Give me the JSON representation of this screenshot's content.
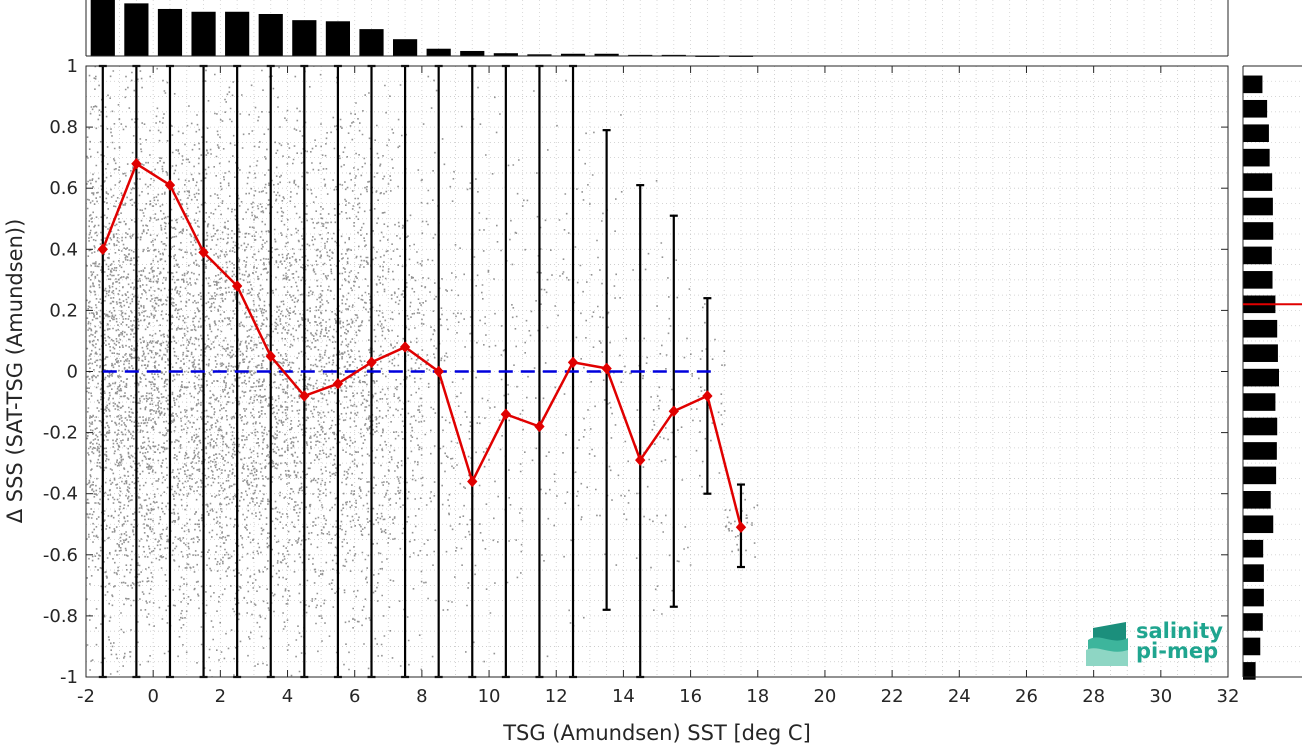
{
  "chart_data": {
    "type": "scatter",
    "xlabel": "TSG (Amundsen) SST [deg C]",
    "ylabel": "Δ SSS (SAT-TSG (Amundsen))",
    "xlim": [
      -2,
      32
    ],
    "ylim": [
      -1,
      1
    ],
    "xticks": [
      -2,
      0,
      2,
      4,
      6,
      8,
      10,
      12,
      14,
      16,
      18,
      20,
      22,
      24,
      26,
      28,
      30,
      32
    ],
    "yticks": [
      -1,
      -0.8,
      -0.6,
      -0.4,
      -0.2,
      0,
      0.2,
      0.4,
      0.6,
      0.8,
      1
    ],
    "grid": true,
    "reference_line": {
      "y": 0,
      "style": "dashed",
      "color": "#0000dd"
    },
    "scatter_color": "#808080",
    "bin_mean": {
      "color": "#e00000",
      "x": [
        -1.5,
        -0.5,
        0.5,
        1.5,
        2.5,
        3.5,
        4.5,
        5.5,
        6.5,
        7.5,
        8.5,
        9.5,
        10.5,
        11.5,
        12.5,
        13.5,
        14.5,
        15.5,
        16.5,
        17.5
      ],
      "y": [
        0.4,
        0.68,
        0.61,
        0.39,
        0.28,
        0.05,
        -0.08,
        -0.04,
        0.03,
        0.08,
        0.0,
        -0.36,
        -0.14,
        -0.18,
        0.03,
        0.01,
        -0.29,
        -0.13,
        -0.08,
        -0.51
      ]
    },
    "error_bars": {
      "color": "#000000",
      "x": [
        -1.5,
        -0.5,
        0.5,
        1.5,
        2.5,
        3.5,
        4.5,
        5.5,
        6.5,
        7.5,
        8.5,
        9.5,
        10.5,
        11.5,
        12.5,
        13.5,
        14.5,
        15.5,
        16.5,
        17.5
      ],
      "lower": [
        -1,
        -1,
        -1,
        -1,
        -1,
        -1,
        -1,
        -1,
        -1,
        -1,
        -1,
        -1,
        -1,
        -1,
        -1,
        -0.78,
        -1,
        -0.77,
        -0.4,
        -0.64
      ],
      "upper": [
        1,
        1,
        1,
        1,
        1,
        1,
        1,
        1,
        1,
        1,
        1,
        1,
        1,
        1,
        1,
        0.79,
        0.61,
        0.51,
        0.24,
        -0.37
      ]
    },
    "top_histogram": {
      "x": [
        -1.5,
        -0.5,
        0.5,
        1.5,
        2.5,
        3.5,
        4.5,
        5.5,
        6.5,
        7.5,
        8.5,
        9.5,
        10.5,
        11.5,
        12.5,
        13.5,
        14.5,
        15.5,
        16.5,
        17.5
      ],
      "relative_counts": [
        1.0,
        0.94,
        0.84,
        0.79,
        0.79,
        0.75,
        0.64,
        0.62,
        0.48,
        0.3,
        0.13,
        0.09,
        0.05,
        0.03,
        0.04,
        0.04,
        0.02,
        0.02,
        0.01,
        0.01
      ]
    },
    "right_histogram": {
      "y": [
        -0.98,
        -0.9,
        -0.82,
        -0.74,
        -0.66,
        -0.58,
        -0.5,
        -0.42,
        -0.34,
        -0.26,
        -0.18,
        -0.1,
        -0.02,
        0.06,
        0.14,
        0.22,
        0.3,
        0.38,
        0.46,
        0.54,
        0.62,
        0.7,
        0.78,
        0.86,
        0.94
      ],
      "relative_counts": [
        0.35,
        0.48,
        0.55,
        0.58,
        0.58,
        0.56,
        0.84,
        0.77,
        0.92,
        0.94,
        0.95,
        0.9,
        1.0,
        0.97,
        0.95,
        0.9,
        0.82,
        0.8,
        0.84,
        0.83,
        0.81,
        0.74,
        0.72,
        0.67,
        0.54
      ],
      "mean_marker": {
        "y": 0.22,
        "color": "#e00000"
      }
    }
  },
  "logo": {
    "line1": "salinity",
    "line2": "pi-mep"
  }
}
